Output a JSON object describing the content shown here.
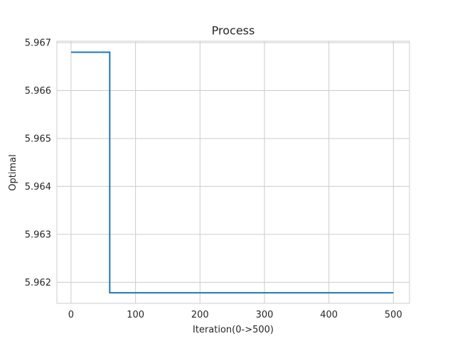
{
  "chart_data": {
    "type": "line",
    "title": "Process",
    "xlabel": "Iteration(0->500)",
    "ylabel": "Optimal",
    "xlim": [
      -22,
      525
    ],
    "ylim": [
      5.96156,
      5.96703
    ],
    "x_ticks": [
      0,
      100,
      200,
      300,
      400,
      500
    ],
    "x_tick_labels": [
      "0",
      "100",
      "200",
      "300",
      "400",
      "500"
    ],
    "y_ticks": [
      5.962,
      5.963,
      5.964,
      5.965,
      5.966,
      5.967
    ],
    "y_tick_labels": [
      "5.962",
      "5.963",
      "5.964",
      "5.965",
      "5.966",
      "5.967"
    ],
    "grid": true,
    "series": [
      {
        "color": "#1f77b4",
        "x": [
          0,
          60,
          60,
          500
        ],
        "y": [
          5.9668,
          5.9668,
          5.96178,
          5.96178
        ]
      }
    ]
  }
}
